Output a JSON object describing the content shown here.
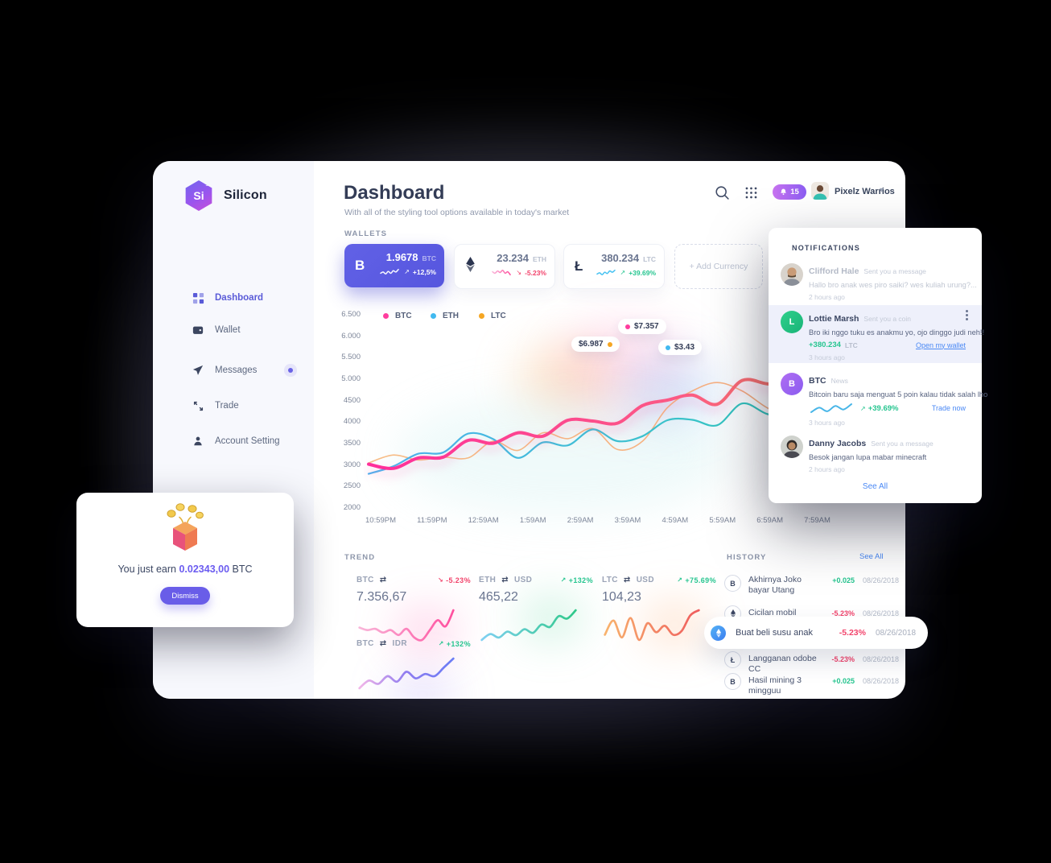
{
  "colors": {
    "accent_indigo": "#5a5bd8",
    "btc_pink": "#ff3d9e",
    "eth_cyan": "#41b9f0",
    "eth_teal": "#2fc9b8",
    "ltc_orange": "#f5a623",
    "green": "#25c58f",
    "red": "#f2436b",
    "link_blue": "#4b89f5",
    "card_purple": "#5b5be2",
    "highlight_bg": "#eef0fb"
  },
  "brand": {
    "logo_text": "Si",
    "logo_sup": "14",
    "name": "Silicon"
  },
  "sidebar": {
    "items": [
      {
        "label": "Dashboard"
      },
      {
        "label": "Wallet"
      },
      {
        "label": "Messages"
      },
      {
        "label": "Trade"
      },
      {
        "label": "Account Setting"
      }
    ]
  },
  "header": {
    "title": "Dashboard",
    "subtitle": "With all of the styling tool options available in today's market",
    "notification_count": "15",
    "user_name": "Pixelz Warrios"
  },
  "wallets": {
    "label": "WALLETS",
    "add_label": "+ Add Currency",
    "cards": [
      {
        "coin": "BTC",
        "symbol": "B",
        "amount": "1.9678",
        "unit": "BTC",
        "change": "+12,5%",
        "direction": "up",
        "spark": [
          3,
          5,
          2,
          6,
          3,
          7,
          5,
          9
        ]
      },
      {
        "coin": "ETH",
        "symbol": "eth",
        "amount": "23.234",
        "unit": "ETH",
        "change": "-5.23%",
        "direction": "down",
        "spark": [
          6,
          4,
          7,
          5,
          8,
          4,
          6,
          2
        ]
      },
      {
        "coin": "LTC",
        "symbol": "Ł",
        "amount": "380.234",
        "unit": "LTC",
        "change": "+39.69%",
        "direction": "up",
        "spark": [
          3,
          5,
          2,
          6,
          4,
          8,
          6,
          9
        ]
      }
    ]
  },
  "chart_data": {
    "type": "line",
    "title": "",
    "x_labels": [
      "10:59PM",
      "11:59PM",
      "12:59AM",
      "1:59AM",
      "2:59AM",
      "3:59AM",
      "4:59AM",
      "5:59AM",
      "6:59AM",
      "7:59AM"
    ],
    "y_labels": [
      "6.500",
      "6.000",
      "5.500",
      "5.000",
      "4500",
      "4000",
      "3500",
      "3000",
      "2500",
      "2000"
    ],
    "ylim": [
      2000,
      6500
    ],
    "grid": false,
    "legend_position": "top",
    "legend": [
      {
        "name": "BTC",
        "color": "#ff3d9e"
      },
      {
        "name": "ETH",
        "color": "#41b9f0"
      },
      {
        "name": "LTC",
        "color": "#f5a623"
      }
    ],
    "series": [
      {
        "name": "LTC",
        "values": [
          2980,
          3170,
          3050,
          3120,
          3100,
          3500,
          3280,
          3700,
          3560,
          3800,
          3300,
          3500,
          4300,
          4700,
          4900,
          4700,
          4300,
          4050,
          4250
        ]
      },
      {
        "name": "ETH",
        "values": [
          2720,
          2900,
          3200,
          3230,
          3680,
          3550,
          3100,
          3470,
          3400,
          3780,
          3500,
          3620,
          4000,
          4010,
          3880,
          4400,
          4150,
          4050,
          4550
        ]
      },
      {
        "name": "BTC",
        "values": [
          2950,
          2850,
          3100,
          3120,
          3520,
          3450,
          3700,
          3620,
          4000,
          3980,
          3930,
          4350,
          4480,
          4600,
          4380,
          4950,
          4870,
          4830,
          5250
        ]
      }
    ],
    "annotations": [
      {
        "label": "$6.987",
        "series": "LTC",
        "color": "#f5a623"
      },
      {
        "label": "$7.357",
        "series": "BTC",
        "color": "#ff3d9e"
      },
      {
        "label": "$3.43",
        "series": "ETH",
        "color": "#41b9f0"
      }
    ]
  },
  "trend": {
    "label": "TREND",
    "items": [
      {
        "base": "BTC",
        "quote": "",
        "value": "7.356,67",
        "change": "-5.23%",
        "direction": "down",
        "spark": [
          12,
          10,
          11,
          8,
          10,
          6,
          11,
          4,
          2,
          10,
          18,
          13,
          26
        ]
      },
      {
        "base": "ETH",
        "quote": "USD",
        "value": "465,22",
        "change": "+132%",
        "direction": "up",
        "spark": [
          8,
          13,
          10,
          15,
          12,
          17,
          14,
          21,
          19,
          28,
          26,
          33
        ]
      },
      {
        "base": "LTC",
        "quote": "USD",
        "value": "104,23",
        "change": "+75.69%",
        "direction": "up",
        "spark": [
          10,
          21,
          8,
          23,
          6,
          19,
          12,
          17,
          10,
          13,
          25,
          29
        ]
      },
      {
        "base": "BTC",
        "quote": "IDR",
        "value": "",
        "change": "+132%",
        "direction": "up",
        "spark": [
          6,
          13,
          10,
          17,
          12,
          21,
          15,
          19,
          17,
          25,
          33
        ]
      }
    ]
  },
  "history": {
    "label": "HISTORY",
    "see_all": "See All",
    "rows": [
      {
        "coin": "BTC",
        "name": "Akhirnya Joko bayar Utang",
        "value": "+0.025",
        "positive": true,
        "date": "08/26/2018"
      },
      {
        "coin": "ETH",
        "name": "Cicilan mobil",
        "value": "-5.23%",
        "positive": false,
        "date": "08/26/2018"
      },
      {
        "coin": "ETH",
        "name": "Buat beli susu anak",
        "value": "-5.23%",
        "positive": false,
        "date": "08/26/2018",
        "highlighted": true
      },
      {
        "coin": "LTC",
        "name": "Langganan odobe CC",
        "value": "-5.23%",
        "positive": false,
        "date": "08/26/2018"
      },
      {
        "coin": "BTC",
        "name": "Hasil mining 3 mingguu",
        "value": "+0.025",
        "positive": true,
        "date": "08/26/2018"
      }
    ]
  },
  "notifications": {
    "title": "NOTIFICATIONS",
    "see_all": "See All",
    "items": [
      {
        "name": "Clifford Hale",
        "action": "Sent you a message",
        "body": "Hallo bro anak wes piro saiki? wes kuliah urung?...",
        "time": "2 hours ago"
      },
      {
        "name": "Lottie Marsh",
        "action": "Sent you a coin",
        "body": "Bro iki nggo tuku es anakmu yo, ojo dinggo judi neh!!",
        "amount": "+380.234",
        "unit": "LTC",
        "link": "Open my wallet",
        "time": "3 hours ago",
        "avatar_letter": "L"
      },
      {
        "name": "BTC",
        "action": "News",
        "body": "Bitcoin baru saja menguat 5 poin kalau tidak salah lho",
        "change": "+39.69%",
        "link": "Trade now",
        "time": "3 hours ago",
        "avatar_letter": "B",
        "spark": [
          4,
          9,
          5,
          11,
          7,
          13
        ]
      },
      {
        "name": "Danny Jacobs",
        "action": "Sent you a message",
        "body": "Besok jangan lupa mabar minecraft",
        "time": "2 hours ago"
      }
    ]
  },
  "toast": {
    "prefix": "You just earn",
    "amount": "0.02343,00",
    "unit": "BTC",
    "button_label": "Dismiss"
  },
  "icons": {
    "swap": "⇄",
    "up_arrow": "↗",
    "down_arrow": "↘",
    "chevron_down": "▾"
  }
}
